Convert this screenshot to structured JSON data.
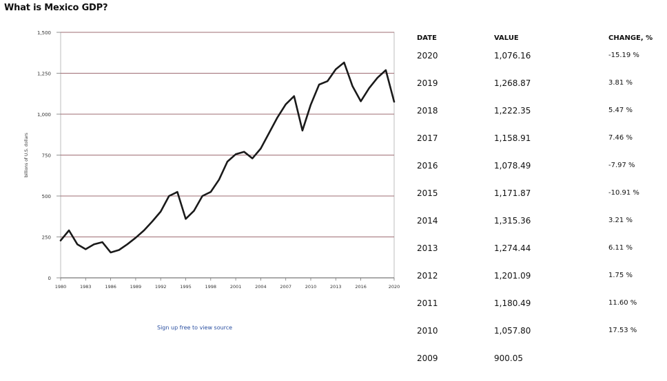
{
  "title": "What is Mexico GDP?",
  "source_link": "Sign up free to view source",
  "table": {
    "headers": [
      "DATE",
      "VALUE",
      "CHANGE, %"
    ],
    "rows": [
      {
        "date": "2020",
        "value": "1,076.16",
        "change": "-15.19 %"
      },
      {
        "date": "2019",
        "value": "1,268.87",
        "change": "3.81 %"
      },
      {
        "date": "2018",
        "value": "1,222.35",
        "change": "5.47 %"
      },
      {
        "date": "2017",
        "value": "1,158.91",
        "change": "7.46 %"
      },
      {
        "date": "2016",
        "value": "1,078.49",
        "change": "-7.97 %"
      },
      {
        "date": "2015",
        "value": "1,171.87",
        "change": "-10.91 %"
      },
      {
        "date": "2014",
        "value": "1,315.36",
        "change": "3.21 %"
      },
      {
        "date": "2013",
        "value": "1,274.44",
        "change": "6.11 %"
      },
      {
        "date": "2012",
        "value": "1,201.09",
        "change": "1.75 %"
      },
      {
        "date": "2011",
        "value": "1,180.49",
        "change": "11.60 %"
      },
      {
        "date": "2010",
        "value": "1,057.80",
        "change": "17.53 %"
      },
      {
        "date": "2009",
        "value": "900.05",
        "change": ""
      }
    ]
  },
  "chart_data": {
    "type": "line",
    "title": "What is Mexico GDP?",
    "xlabel": "",
    "ylabel": "billions of U.S. dollars",
    "xlim": [
      1980,
      2020
    ],
    "ylim": [
      0,
      1500
    ],
    "xticks": [
      1980,
      1983,
      1986,
      1989,
      1992,
      1995,
      1998,
      2001,
      2004,
      2007,
      2010,
      2013,
      2016,
      2020
    ],
    "yticks": [
      0,
      250,
      500,
      750,
      1000,
      1250,
      1500
    ],
    "ytick_labels": [
      "0",
      "250",
      "500",
      "750",
      "1,000",
      "1,250",
      "1,500"
    ],
    "grid": true,
    "line_color": "#1a1a1a",
    "grid_color": "#9e6b72",
    "series": [
      {
        "x": [
          1980,
          1981,
          1982,
          1983,
          1984,
          1985,
          1986,
          1987,
          1988,
          1989,
          1990,
          1991,
          1992,
          1993,
          1994,
          1995,
          1996,
          1997,
          1998,
          1999,
          2000,
          2001,
          2002,
          2003,
          2004,
          2005,
          2006,
          2007,
          2008,
          2009,
          2010,
          2011,
          2012,
          2013,
          2014,
          2015,
          2016,
          2017,
          2018,
          2019,
          2020
        ],
        "values": [
          228,
          290,
          205,
          175,
          205,
          218,
          155,
          170,
          205,
          245,
          290,
          345,
          405,
          500,
          525,
          360,
          410,
          500,
          525,
          600,
          710,
          755,
          770,
          730,
          790,
          885,
          980,
          1060,
          1110,
          900,
          1057.8,
          1180.49,
          1201.09,
          1274.44,
          1315.36,
          1171.87,
          1078.49,
          1158.91,
          1222.35,
          1268.87,
          1076.16
        ]
      }
    ]
  }
}
